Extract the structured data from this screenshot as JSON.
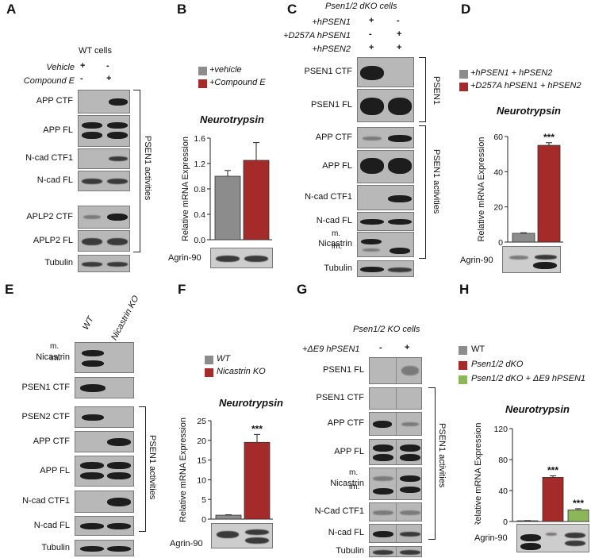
{
  "panels": {
    "A": {
      "letter": "A",
      "header": "WT cells",
      "treatments": [
        {
          "label": "Vehicle",
          "marks": [
            "+",
            "-"
          ]
        },
        {
          "label": "Compound E",
          "marks": [
            "-",
            "+"
          ]
        }
      ],
      "rows": [
        "APP CTF",
        "APP FL",
        "N-cad CTF1",
        "N-cad FL",
        "APLP2 CTF",
        "APLP2 FL",
        "Tubulin"
      ],
      "bracket_label": "PSEN1 activities"
    },
    "B": {
      "letter": "B",
      "legend": [
        "+vehicle",
        "+Compound E"
      ],
      "agrin": "Agrin-90"
    },
    "C": {
      "letter": "C",
      "header": "Psen1/2 dKO cells",
      "treatments": [
        {
          "label": "+hPSEN1",
          "marks": [
            "+",
            "-"
          ]
        },
        {
          "label": "+D257A hPSEN1",
          "marks": [
            "-",
            "+"
          ]
        },
        {
          "label": "+hPSEN2",
          "marks": [
            "+",
            "+"
          ]
        }
      ],
      "rows": [
        "PSEN1 CTF",
        "PSEN1 FL",
        "APP CTF",
        "APP FL",
        "N-cad CTF1",
        "N-cad FL",
        "Nicastrin",
        "Tubulin"
      ],
      "nicastrin_forms": [
        "m.",
        "im."
      ],
      "bracket_psen1": "PSEN1",
      "bracket_activities": "PSEN1 activities"
    },
    "D": {
      "letter": "D",
      "legend": [
        "+hPSEN1 + hPSEN2",
        "+D257A hPSEN1 + hPSEN2"
      ],
      "agrin": "Agrin-90"
    },
    "E": {
      "letter": "E",
      "lanes": [
        "WT",
        "Nicastrin KO"
      ],
      "rows": [
        "Nicastrin",
        "PSEN1 CTF",
        "PSEN2 CTF",
        "APP CTF",
        "APP FL",
        "N-cad CTF1",
        "N-cad FL",
        "Tubulin"
      ],
      "nicastrin_forms": [
        "m.",
        "im."
      ],
      "bracket_label": "PSEN1 activities"
    },
    "F": {
      "letter": "F",
      "legend": [
        "WT",
        "Nicastrin KO"
      ],
      "agrin": "Agrin-90"
    },
    "G": {
      "letter": "G",
      "header": "Psen1/2 KO cells",
      "treatment": {
        "label": "+ΔE9 hPSEN1",
        "marks": [
          "-",
          "+"
        ]
      },
      "rows": [
        "PSEN1 FL",
        "PSEN1 CTF",
        "APP CTF",
        "APP FL",
        "Nicastrin",
        "N-Cad CTF1",
        "N-cad FL",
        "Tubulin"
      ],
      "nicastrin_forms": [
        "m.",
        "im."
      ],
      "bracket_label": "PSEN1 activities"
    },
    "H": {
      "letter": "H",
      "legend": [
        "WT",
        "Psen1/2 dKO",
        "Psen1/2 dKO + ΔE9 hPSEN1"
      ],
      "agrin": "Agrin-90"
    }
  },
  "colors": {
    "gray": "#8c8c8c",
    "red": "#a52a2a",
    "green": "#8db55a"
  },
  "chart_data": [
    {
      "panel": "B",
      "type": "bar",
      "title": "Neurotrypsin",
      "ylabel": "Relative mRNA Expression",
      "ylim": [
        0,
        1.6
      ],
      "yticks": [
        "0.0",
        "0.4",
        "0.8",
        "1.2",
        "1.6"
      ],
      "series": [
        {
          "name": "+vehicle",
          "value": 1.0,
          "error": 0.09,
          "color": "#8c8c8c"
        },
        {
          "name": "+Compound E",
          "value": 1.25,
          "error": 0.28,
          "color": "#a52a2a"
        }
      ]
    },
    {
      "panel": "D",
      "type": "bar",
      "title": "Neurotrypsin",
      "ylabel": "Relative mRNA Expression",
      "ylim": [
        0,
        60
      ],
      "yticks": [
        "0",
        "20",
        "40",
        "60"
      ],
      "series": [
        {
          "name": "+hPSEN1 + hPSEN2",
          "value": 5.0,
          "error": 0.3,
          "color": "#8c8c8c"
        },
        {
          "name": "+D257A hPSEN1 + hPSEN2",
          "value": 55.0,
          "error": 1.5,
          "color": "#a52a2a",
          "annotation": "***"
        }
      ]
    },
    {
      "panel": "F",
      "type": "bar",
      "title": "Neurotrypsin",
      "ylabel": "Relative mRNA Expression",
      "ylim": [
        0,
        25
      ],
      "yticks": [
        "0",
        "5",
        "10",
        "15",
        "20",
        "25"
      ],
      "series": [
        {
          "name": "WT",
          "value": 1.0,
          "error": 0.1,
          "color": "#8c8c8c"
        },
        {
          "name": "Nicastrin KO",
          "value": 19.5,
          "error": 2.0,
          "color": "#a52a2a",
          "annotation": "***"
        }
      ]
    },
    {
      "panel": "H",
      "type": "bar",
      "title": "Neurotrypsin",
      "ylabel": "Relative mRNA Expression",
      "ylim": [
        0,
        120
      ],
      "yticks": [
        "0",
        "40",
        "80",
        "120"
      ],
      "series": [
        {
          "name": "WT",
          "value": 1.0,
          "error": 0.2,
          "color": "#8c8c8c"
        },
        {
          "name": "Psen1/2 dKO",
          "value": 57.0,
          "error": 2.0,
          "color": "#a52a2a",
          "annotation": "***"
        },
        {
          "name": "Psen1/2 dKO + ΔE9 hPSEN1",
          "value": 15.0,
          "error": 1.5,
          "color": "#8db55a",
          "annotation": "***"
        }
      ]
    }
  ]
}
